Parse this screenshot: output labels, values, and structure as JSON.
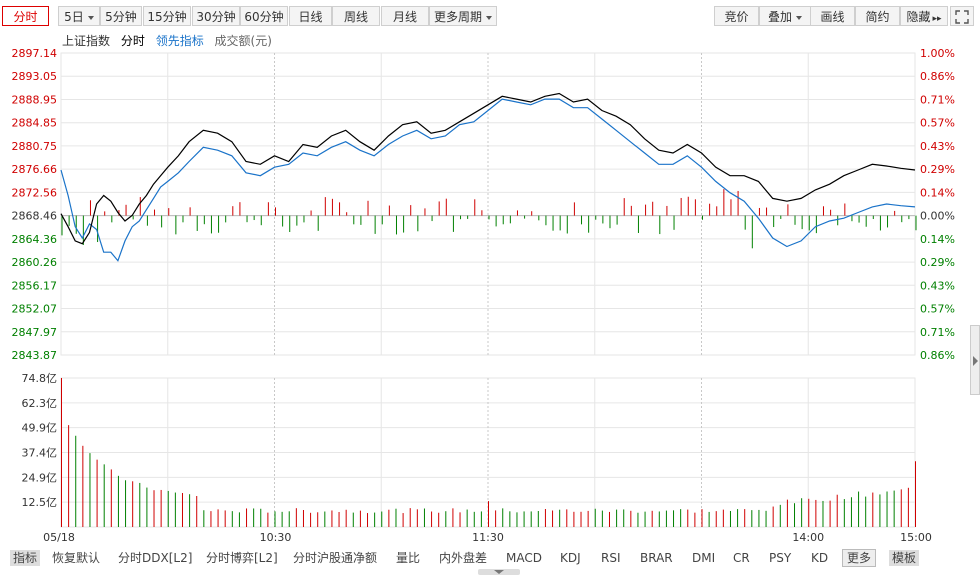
{
  "toolbar": {
    "left_tabs": [
      {
        "label": "分时",
        "active": true
      },
      {
        "label": "5日",
        "dropdown": true
      },
      {
        "label": "5分钟"
      },
      {
        "label": "15分钟"
      },
      {
        "label": "30分钟"
      },
      {
        "label": "60分钟"
      },
      {
        "label": "日线"
      },
      {
        "label": "周线"
      },
      {
        "label": "月线"
      },
      {
        "label": "更多周期",
        "dropdown": true
      }
    ],
    "right_tabs": [
      {
        "label": "竞价"
      },
      {
        "label": "叠加",
        "dropdown": true
      },
      {
        "label": "画线"
      },
      {
        "label": "简约"
      },
      {
        "label": "隐藏",
        "arrows": "▸▸"
      }
    ],
    "fullscreen_icon": "fullscreen-icon"
  },
  "indicator_row": {
    "index_name": "上证指数",
    "mode": "分时",
    "leading_indicator": "领先指标",
    "volume_label": "成交额(元)"
  },
  "colors": {
    "up": "#d00000",
    "down": "#008000",
    "price_line": "#000000",
    "leading_line": "#1a73c9",
    "grid": "#e6e6e6",
    "grid_dashed": "#c8c8c8",
    "accent_link": "#1a73c9"
  },
  "chart_data": {
    "type": "line",
    "title": "",
    "time_labels": [
      "05/18",
      "10:30",
      "11:30",
      "14:00",
      "15:00"
    ],
    "base_price": 2868.46,
    "price_ticks": [
      "2897.14",
      "2893.05",
      "2888.95",
      "2884.85",
      "2880.75",
      "2876.66",
      "2872.56",
      "2868.46",
      "2864.36",
      "2860.26",
      "2856.17",
      "2852.07",
      "2847.97",
      "2843.87"
    ],
    "percent_ticks": [
      "1.00%",
      "0.86%",
      "0.71%",
      "0.57%",
      "0.43%",
      "0.29%",
      "0.14%",
      "0.00%",
      "0.14%",
      "0.29%",
      "0.43%",
      "0.57%",
      "0.71%",
      "0.86%"
    ],
    "volume_ticks": [
      "74.8亿",
      "62.3亿",
      "49.9亿",
      "37.4亿",
      "24.9亿",
      "12.5亿"
    ],
    "ylim": [
      2843.87,
      2897.14
    ],
    "volume_ylim": [
      0,
      74.8
    ],
    "series": [
      {
        "name": "上证指数",
        "x": [
          0,
          2,
          4,
          6,
          8,
          10,
          12,
          14,
          16,
          18,
          20,
          22,
          24,
          26,
          28,
          30,
          33,
          36,
          40,
          44,
          48,
          52,
          56,
          60,
          64,
          68,
          72,
          76,
          80,
          84,
          88,
          92,
          96,
          100,
          104,
          108,
          112,
          116,
          120,
          124,
          128,
          132,
          136,
          140,
          144,
          148,
          152,
          156,
          160,
          164,
          168,
          172,
          176,
          180,
          184,
          188,
          192,
          196,
          200,
          204,
          208,
          212,
          216,
          220,
          224,
          228,
          232,
          236,
          240
        ],
        "values": [
          2868.8,
          2866.5,
          2864.0,
          2863.5,
          2865.5,
          2870.5,
          2872.0,
          2871.0,
          2869.0,
          2867.5,
          2868.5,
          2870.5,
          2872.0,
          2874.0,
          2875.5,
          2877.0,
          2879.0,
          2881.5,
          2883.5,
          2883.0,
          2881.5,
          2878.0,
          2877.5,
          2879.0,
          2878.0,
          2881.0,
          2880.5,
          2882.5,
          2883.5,
          2881.5,
          2880.0,
          2882.5,
          2884.5,
          2885.0,
          2883.0,
          2883.5,
          2885.0,
          2886.5,
          2888.0,
          2889.5,
          2889.0,
          2888.5,
          2889.5,
          2890.0,
          2888.5,
          2889.0,
          2887.0,
          2886.0,
          2884.5,
          2882.0,
          2880.0,
          2879.5,
          2881.0,
          2879.5,
          2877.0,
          2875.5,
          2875.5,
          2874.5,
          2871.5,
          2871.0,
          2871.5,
          2873.0,
          2874.0,
          2875.5,
          2876.5,
          2877.5,
          2877.2,
          2876.8,
          2876.5
        ]
      },
      {
        "name": "领先指标",
        "x": [
          0,
          2,
          4,
          6,
          8,
          10,
          12,
          14,
          16,
          18,
          20,
          22,
          24,
          26,
          28,
          30,
          33,
          36,
          40,
          44,
          48,
          52,
          56,
          60,
          64,
          68,
          72,
          76,
          80,
          84,
          88,
          92,
          96,
          100,
          104,
          108,
          112,
          116,
          120,
          124,
          128,
          132,
          136,
          140,
          144,
          148,
          152,
          156,
          160,
          164,
          168,
          172,
          176,
          180,
          184,
          188,
          192,
          196,
          200,
          204,
          208,
          212,
          216,
          220,
          224,
          228,
          232,
          236,
          240
        ],
        "values": [
          2876.5,
          2872.0,
          2866.5,
          2864.5,
          2867.0,
          2866.0,
          2862.0,
          2862.0,
          2860.5,
          2864.0,
          2866.5,
          2867.5,
          2869.5,
          2871.5,
          2873.5,
          2874.5,
          2876.0,
          2878.0,
          2880.5,
          2880.0,
          2879.0,
          2876.0,
          2875.5,
          2877.0,
          2877.5,
          2879.5,
          2879.0,
          2880.5,
          2881.5,
          2880.0,
          2879.0,
          2881.0,
          2882.5,
          2883.5,
          2882.0,
          2882.5,
          2884.5,
          2885.0,
          2887.0,
          2889.0,
          2888.5,
          2888.0,
          2889.0,
          2889.0,
          2887.5,
          2887.5,
          2885.5,
          2883.5,
          2881.5,
          2879.5,
          2877.5,
          2877.5,
          2879.0,
          2877.0,
          2874.5,
          2872.5,
          2871.0,
          2868.0,
          2864.5,
          2863.0,
          2864.0,
          2866.5,
          2867.5,
          2868.0,
          2869.0,
          2870.0,
          2870.5,
          2870.2,
          2870.0
        ]
      }
    ]
  },
  "bottom_bar": {
    "items": [
      {
        "label": "指标",
        "style": "highlight"
      },
      {
        "label": "恢复默认"
      },
      {
        "label": "分时DDX[L2]"
      },
      {
        "label": "分时博弈[L2]"
      },
      {
        "label": "分时沪股通净额"
      },
      {
        "label": "量比"
      },
      {
        "label": "内外盘差"
      },
      {
        "label": "MACD"
      },
      {
        "label": "KDJ"
      },
      {
        "label": "RSI"
      },
      {
        "label": "BRAR"
      },
      {
        "label": "DMI"
      },
      {
        "label": "CR"
      },
      {
        "label": "PSY"
      },
      {
        "label": "KD"
      },
      {
        "label": "更多",
        "style": "boxed"
      },
      {
        "label": "模板",
        "style": "highlight"
      }
    ]
  }
}
